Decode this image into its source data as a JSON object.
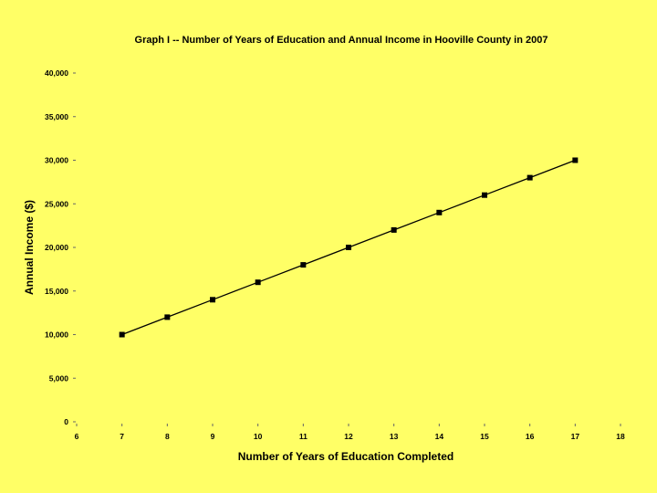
{
  "chart_data": {
    "type": "line",
    "title": "Graph I -- Number of Years of Education and Annual Income in Hooville County in 2007",
    "xlabel": "Number of Years of Education Completed",
    "ylabel": "Annual Income ($)",
    "xlim": [
      6,
      18
    ],
    "ylim": [
      0,
      40000
    ],
    "x_ticks": [
      "6",
      "7",
      "8",
      "9",
      "10",
      "11",
      "12",
      "13",
      "14",
      "15",
      "16",
      "17",
      "18"
    ],
    "y_ticks": [
      "0",
      "5,000",
      "10,000",
      "15,000",
      "20,000",
      "25,000",
      "30,000",
      "35,000",
      "40,000"
    ],
    "x": [
      7,
      8,
      9,
      10,
      11,
      12,
      13,
      14,
      15,
      16,
      17
    ],
    "series": [
      {
        "values": [
          10000,
          12000,
          14000,
          16000,
          18000,
          20000,
          22000,
          24000,
          26000,
          28000,
          30000
        ]
      }
    ],
    "grid": false,
    "background_color": "#FFFF66",
    "line_color": "#000000",
    "marker": "square"
  }
}
